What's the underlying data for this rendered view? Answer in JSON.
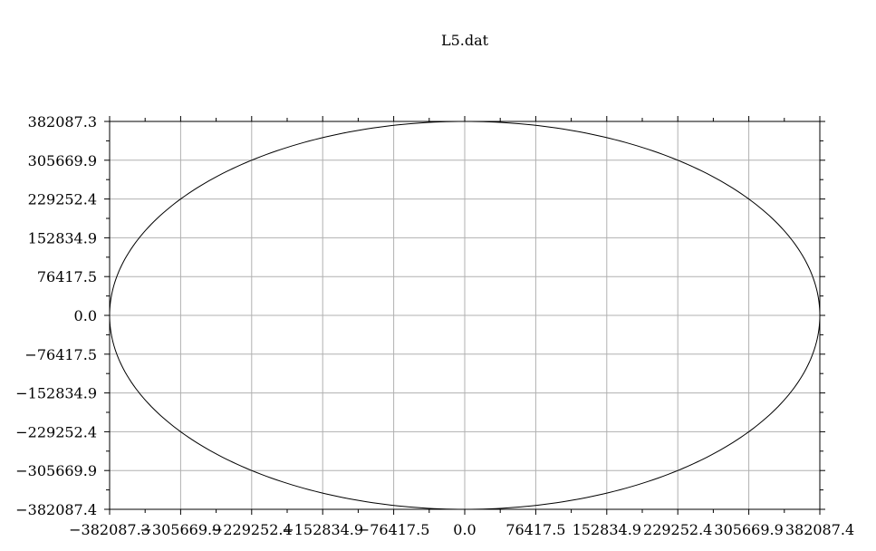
{
  "chart_data": {
    "type": "line",
    "title": "L5.dat",
    "xlabel": "",
    "ylabel": "",
    "xlim": [
      -382087.3,
      382087.4
    ],
    "ylim": [
      -382087.4,
      382087.3
    ],
    "grid": true,
    "x_ticks": [
      {
        "value": -382087.3,
        "label": "−382087.3"
      },
      {
        "value": -305669.9,
        "label": "−305669.9"
      },
      {
        "value": -229252.4,
        "label": "−229252.4"
      },
      {
        "value": -152834.9,
        "label": "−152834.9"
      },
      {
        "value": -76417.5,
        "label": "−76417.5"
      },
      {
        "value": 0.0,
        "label": "0.0"
      },
      {
        "value": 76417.5,
        "label": "76417.5"
      },
      {
        "value": 152834.9,
        "label": "152834.9"
      },
      {
        "value": 229252.4,
        "label": "229252.4"
      },
      {
        "value": 305669.9,
        "label": "305669.9"
      },
      {
        "value": 382087.4,
        "label": "382087.4"
      }
    ],
    "y_ticks": [
      {
        "value": 382087.3,
        "label": "382087.3"
      },
      {
        "value": 305669.9,
        "label": "305669.9"
      },
      {
        "value": 229252.4,
        "label": "229252.4"
      },
      {
        "value": 152834.9,
        "label": "152834.9"
      },
      {
        "value": 76417.5,
        "label": "76417.5"
      },
      {
        "value": 0.0,
        "label": "0.0"
      },
      {
        "value": -76417.5,
        "label": "−76417.5"
      },
      {
        "value": -152834.9,
        "label": "−152834.9"
      },
      {
        "value": -229252.4,
        "label": "−229252.4"
      },
      {
        "value": -305669.9,
        "label": "−305669.9"
      },
      {
        "value": -382087.4,
        "label": "−382087.4"
      }
    ],
    "series": [
      {
        "shape": "closed orbit (ellipse)",
        "color": "#000000",
        "center": [
          0,
          0
        ],
        "x_extent": [
          -382087.3,
          382087.4
        ],
        "y_extent": [
          -382087.4,
          382087.3
        ]
      }
    ]
  }
}
